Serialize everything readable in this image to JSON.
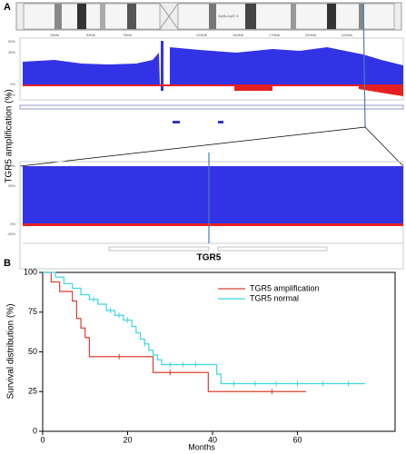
{
  "panel_a": {
    "label": "A",
    "y_label": "TGR5 amplification (%)",
    "gene": "TGR5",
    "band": "2q35-2q37.3",
    "mb_ticks": [
      "25Mb",
      "50Mb",
      "75Mb",
      "125Mb",
      "150Mb",
      "175Mb",
      "200Mb",
      "225Mb"
    ],
    "pct_ticks": [
      "50%",
      "25%",
      "0%",
      "-25%"
    ]
  },
  "panel_b": {
    "label": "B"
  },
  "chart_data": {
    "type": "step",
    "x_label": "Months",
    "y_label": "Survival distribution (%)",
    "xlim": [
      0,
      83
    ],
    "ylim": [
      0,
      100
    ],
    "xticks": [
      0,
      20,
      40,
      60
    ],
    "yticks": [
      0,
      25,
      50,
      75,
      100
    ],
    "legend": "top-right",
    "series": [
      {
        "name": "TGR5 amplification",
        "color": "#d9412f",
        "x": [
          0,
          2,
          4,
          7,
          8,
          9,
          10,
          11,
          26,
          39,
          62
        ],
        "values": [
          100,
          94,
          88,
          82,
          71,
          65,
          59,
          47,
          37,
          25,
          25
        ],
        "censor_x": [
          18,
          30,
          54
        ],
        "censor_values": [
          47,
          37,
          25
        ]
      },
      {
        "name": "TGR5 normal",
        "color": "#3fd6e0",
        "x": [
          0,
          3,
          5,
          7,
          9,
          11,
          13,
          15,
          17,
          19,
          21,
          22,
          23,
          24,
          25,
          26,
          27,
          28,
          41,
          42,
          76
        ],
        "values": [
          100,
          97,
          93,
          90,
          86,
          83,
          80,
          76,
          73,
          70,
          66,
          62,
          58,
          55,
          51,
          48,
          45,
          42,
          36,
          30,
          30
        ],
        "censor_x": [
          12,
          16,
          18,
          20,
          24,
          30,
          33,
          36,
          45,
          50,
          55,
          60,
          66,
          72
        ],
        "censor_values": [
          83,
          76,
          73,
          70,
          55,
          42,
          42,
          42,
          30,
          30,
          30,
          30,
          30,
          30
        ]
      }
    ]
  }
}
